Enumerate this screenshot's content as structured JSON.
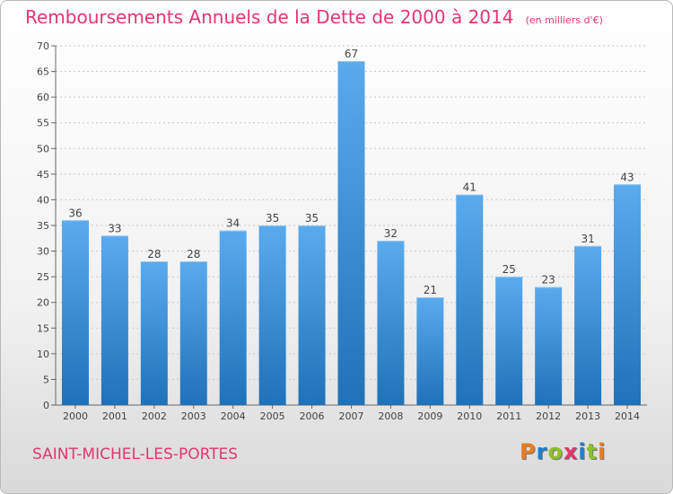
{
  "header": {
    "title": "Remboursements Annuels de la Dette de 2000 à 2014",
    "subtitle": "(en milliers d'€)"
  },
  "footer": {
    "commune": "SAINT-MICHEL-LES-PORTES",
    "logo_text": "Proxiti",
    "logo_colors": [
      "#e87d1e",
      "#1a7fd1",
      "#8dbf2a",
      "#e2366d",
      "#1a7fd1",
      "#8dbf2a",
      "#e87d1e"
    ]
  },
  "chart_data": {
    "type": "bar",
    "categories": [
      "2000",
      "2001",
      "2002",
      "2003",
      "2004",
      "2005",
      "2006",
      "2007",
      "2008",
      "2009",
      "2010",
      "2011",
      "2012",
      "2013",
      "2014"
    ],
    "values": [
      36,
      33,
      28,
      28,
      34,
      35,
      35,
      67,
      32,
      21,
      41,
      25,
      23,
      31,
      43
    ],
    "title": "Remboursements Annuels de la Dette de 2000 à 2014",
    "subtitle": "(en milliers d'€)",
    "ylim": [
      0,
      70
    ],
    "yticks": [
      0,
      5,
      10,
      15,
      20,
      25,
      30,
      35,
      40,
      45,
      50,
      55,
      60,
      65,
      70
    ],
    "grid": "horizontal dashed",
    "bar_color": "#3b8fd6",
    "legend": "none"
  }
}
